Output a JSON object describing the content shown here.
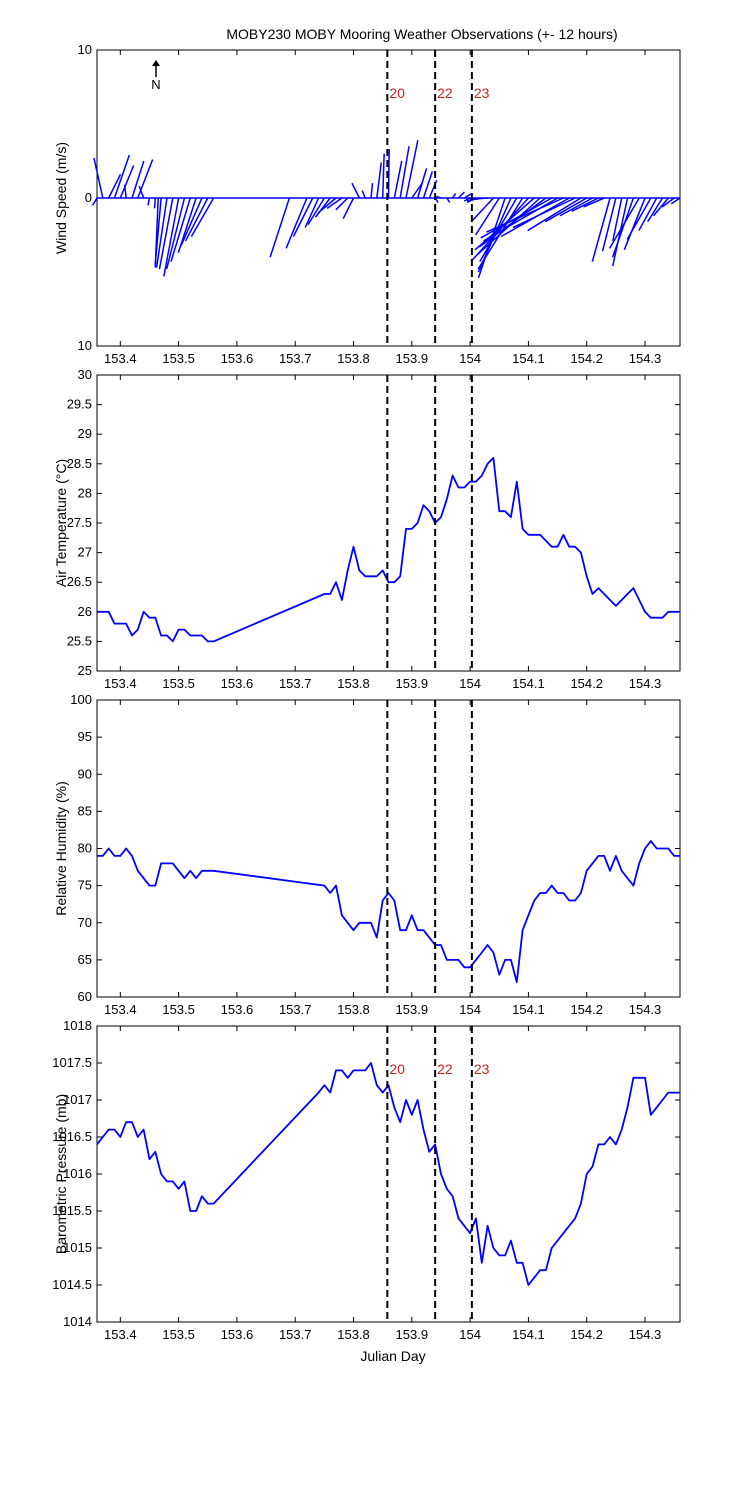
{
  "title": "MOBY230 MOBY Mooring Weather Observations (+- 12 hours)",
  "north_label": "N",
  "x_axis": {
    "label": "Julian Day",
    "range": [
      153.36,
      154.36
    ],
    "ticks": [
      153.4,
      153.5,
      153.6,
      153.7,
      153.8,
      153.9,
      154.0,
      154.1,
      154.2,
      154.3
    ],
    "tick_labels": [
      "153.4",
      "153.5",
      "153.6",
      "153.7",
      "153.8",
      "153.9",
      "154",
      "154.1",
      "154.2",
      "154.3"
    ]
  },
  "event_markers": [
    {
      "label": "20",
      "x": 153.858
    },
    {
      "label": "22",
      "x": 153.94
    },
    {
      "label": "23",
      "x": 154.003
    }
  ],
  "colors": {
    "series": "#0000ff",
    "marker_label": "#cc2222",
    "axis": "#000000",
    "marker_line": "#000000"
  },
  "chart_data": [
    {
      "type": "line",
      "subtype": "wind-stick",
      "ylabel": "Wind Speed (m/s)",
      "ylim": [
        -10,
        10
      ],
      "ytick_labels": [
        "10",
        "0",
        "10"
      ],
      "series": [
        {
          "x": [
            153.36,
            153.37,
            153.38,
            153.39,
            153.4,
            153.41,
            153.42,
            153.43,
            153.44,
            153.45,
            153.46,
            153.465,
            153.47,
            153.48,
            153.49,
            153.5,
            153.51,
            153.52,
            153.53,
            153.54,
            153.55,
            153.56,
            153.69,
            153.72,
            153.73,
            153.74,
            153.75,
            153.76,
            153.77,
            153.78,
            153.79,
            153.8,
            153.81,
            153.82,
            153.83,
            153.84,
            153.85,
            153.86,
            153.87,
            153.88,
            153.89,
            153.9,
            153.91,
            153.92,
            153.93,
            153.94,
            153.95,
            153.96,
            153.97,
            153.98,
            153.99,
            154.0,
            154.01,
            154.02,
            154.03,
            154.04,
            154.05,
            154.06,
            154.07,
            154.08,
            154.09,
            154.1,
            154.11,
            154.12,
            154.13,
            154.14,
            154.15,
            154.16,
            154.17,
            154.18,
            154.19,
            154.2,
            154.21,
            154.22,
            154.23,
            154.24,
            154.25,
            154.26,
            154.27,
            154.28,
            154.29,
            154.3,
            154.31,
            154.32,
            154.33,
            154.34,
            154.35,
            154.36
          ],
          "u": [
            -0.3,
            -0.6,
            0.8,
            1.0,
            0.9,
            -0.1,
            0.8,
            1.0,
            -0.3,
            -0.1,
            -0.05,
            -0.2,
            -0.4,
            -0.7,
            -0.9,
            -1.0,
            -1.2,
            -1.3,
            -1.2,
            -1.4,
            -1.5,
            -1.5,
            -1.3,
            -1.4,
            -1.3,
            -0.9,
            -1.1,
            -1.0,
            -1.2,
            -1.0,
            -0.8,
            -0.7,
            -0.5,
            -0.2,
            0.1,
            0.3,
            0.1,
            0.05,
            0.5,
            0.6,
            0.8,
            0.7,
            0.6,
            0.6,
            0.5,
            0.2,
            -0.3,
            0.2,
            0.2,
            0.4,
            0.5,
            -0.4,
            -0.6,
            -1.0,
            -1.2,
            -1.4,
            -1.6,
            -1.8,
            -2.2,
            -2.5,
            -3.0,
            -3.8,
            -4.0,
            -4.2,
            -4.5,
            -4.8,
            -5.0,
            -5.2,
            -4.6,
            -4.2,
            -3.6,
            -2.8,
            -2.2,
            -1.8,
            -1.4,
            -1.2,
            -0.9,
            -0.6,
            -1.0,
            -1.4,
            -2.0,
            -1.4,
            -1.6,
            -1.2,
            -1.0,
            -1.0,
            -0.8,
            -0.6
          ],
          "v": [
            -0.5,
            2.7,
            1.6,
            2.9,
            2.2,
            0.9,
            2.5,
            2.6,
            0.8,
            -0.5,
            -0.7,
            -4.7,
            -4.5,
            -4.7,
            -4.8,
            -5.3,
            -4.8,
            -4.3,
            -3.7,
            -3.2,
            -2.9,
            -2.6,
            -4.0,
            -3.4,
            -2.6,
            -2.0,
            -1.8,
            -1.3,
            -1.0,
            -0.7,
            -0.8,
            -1.4,
            1.0,
            0.5,
            1.0,
            2.4,
            3.0,
            3.3,
            2.5,
            3.5,
            3.9,
            1.0,
            2.0,
            1.8,
            1.2,
            -0.3,
            0.1,
            -0.3,
            0.3,
            0.4,
            0.3,
            -0.2,
            -0.3,
            -0.2,
            -0.1,
            -1.5,
            -2.5,
            -5.4,
            -5.0,
            -4.3,
            -4.8,
            -4.2,
            -3.5,
            -3.8,
            -3.3,
            -2.7,
            -2.9,
            -2.3,
            -2.6,
            -2.0,
            -2.2,
            -1.6,
            -1.2,
            -0.9,
            -0.6,
            -4.3,
            -3.6,
            -2.9,
            -4.6,
            -4.0,
            -3.4,
            -3.5,
            -2.8,
            -2.2,
            -1.6,
            -1.2,
            -0.6,
            -0.4
          ]
        }
      ]
    },
    {
      "type": "line",
      "ylabel": "Air Temperature (°C)",
      "ylim": [
        25,
        30
      ],
      "yticks": [
        25,
        25.5,
        26,
        26.5,
        27,
        27.5,
        28,
        28.5,
        29,
        29.5,
        30
      ],
      "ytick_labels": [
        "25",
        "25.5",
        "26",
        "26.5",
        "27",
        "27.5",
        "28",
        "28.5",
        "29",
        "29.5",
        "30"
      ],
      "series": [
        {
          "x": [
            153.36,
            153.37,
            153.38,
            153.39,
            153.4,
            153.41,
            153.42,
            153.43,
            153.44,
            153.45,
            153.46,
            153.47,
            153.48,
            153.49,
            153.5,
            153.51,
            153.52,
            153.53,
            153.54,
            153.55,
            153.56,
            153.75,
            153.76,
            153.77,
            153.78,
            153.79,
            153.8,
            153.81,
            153.82,
            153.83,
            153.84,
            153.85,
            153.86,
            153.87,
            153.88,
            153.89,
            153.9,
            153.91,
            153.92,
            153.93,
            153.94,
            153.95,
            153.96,
            153.97,
            153.98,
            153.99,
            154.0,
            154.01,
            154.02,
            154.03,
            154.04,
            154.05,
            154.06,
            154.07,
            154.08,
            154.09,
            154.1,
            154.11,
            154.12,
            154.13,
            154.14,
            154.15,
            154.16,
            154.17,
            154.18,
            154.19,
            154.2,
            154.21,
            154.22,
            154.23,
            154.24,
            154.25,
            154.26,
            154.27,
            154.28,
            154.29,
            154.3,
            154.31,
            154.32,
            154.33,
            154.34,
            154.35,
            154.36
          ],
          "y": [
            26.0,
            26.0,
            26.0,
            25.8,
            25.8,
            25.8,
            25.6,
            25.7,
            26.0,
            25.9,
            25.9,
            25.6,
            25.6,
            25.5,
            25.7,
            25.7,
            25.6,
            25.6,
            25.6,
            25.5,
            25.5,
            26.3,
            26.3,
            26.5,
            26.2,
            26.7,
            27.1,
            26.7,
            26.6,
            26.6,
            26.6,
            26.7,
            26.5,
            26.5,
            26.6,
            27.4,
            27.4,
            27.5,
            27.8,
            27.7,
            27.5,
            27.6,
            27.9,
            28.3,
            28.1,
            28.1,
            28.2,
            28.2,
            28.3,
            28.5,
            28.6,
            27.7,
            27.7,
            27.6,
            28.2,
            27.4,
            27.3,
            27.3,
            27.3,
            27.2,
            27.1,
            27.1,
            27.3,
            27.1,
            27.1,
            27.0,
            26.6,
            26.3,
            26.4,
            26.3,
            26.2,
            26.1,
            26.2,
            26.3,
            26.4,
            26.2,
            26.0,
            25.9,
            25.9,
            25.9,
            26.0,
            26.0,
            26.0
          ]
        }
      ]
    },
    {
      "type": "line",
      "ylabel": "Relative Humidity (%)",
      "ylim": [
        60,
        100
      ],
      "yticks": [
        60,
        65,
        70,
        75,
        80,
        85,
        90,
        95,
        100
      ],
      "ytick_labels": [
        "60",
        "65",
        "70",
        "75",
        "80",
        "85",
        "90",
        "95",
        "100"
      ],
      "series": [
        {
          "x": [
            153.36,
            153.37,
            153.38,
            153.39,
            153.4,
            153.41,
            153.42,
            153.43,
            153.44,
            153.45,
            153.46,
            153.47,
            153.48,
            153.49,
            153.5,
            153.51,
            153.52,
            153.53,
            153.54,
            153.55,
            153.56,
            153.75,
            153.76,
            153.77,
            153.78,
            153.79,
            153.8,
            153.81,
            153.82,
            153.83,
            153.84,
            153.85,
            153.86,
            153.87,
            153.88,
            153.89,
            153.9,
            153.91,
            153.92,
            153.93,
            153.94,
            153.95,
            153.96,
            153.97,
            153.98,
            153.99,
            154.0,
            154.01,
            154.02,
            154.03,
            154.04,
            154.05,
            154.06,
            154.07,
            154.08,
            154.09,
            154.1,
            154.11,
            154.12,
            154.13,
            154.14,
            154.15,
            154.16,
            154.17,
            154.18,
            154.19,
            154.2,
            154.21,
            154.22,
            154.23,
            154.24,
            154.25,
            154.26,
            154.27,
            154.28,
            154.29,
            154.3,
            154.31,
            154.32,
            154.33,
            154.34,
            154.35,
            154.36
          ],
          "y": [
            79,
            79,
            80,
            79,
            79,
            80,
            79,
            77,
            76,
            75,
            75,
            78,
            78,
            78,
            77,
            76,
            77,
            76,
            77,
            77,
            77,
            75,
            74,
            75,
            71,
            70,
            69,
            70,
            70,
            70,
            68,
            73,
            74,
            73,
            69,
            69,
            71,
            69,
            69,
            68,
            67,
            67,
            65,
            65,
            65,
            64,
            64,
            65,
            66,
            67,
            66,
            63,
            65,
            65,
            62,
            69,
            71,
            73,
            74,
            74,
            75,
            74,
            74,
            73,
            73,
            74,
            77,
            78,
            79,
            79,
            77,
            79,
            77,
            76,
            75,
            78,
            80,
            81,
            80,
            80,
            80,
            79,
            79
          ]
        }
      ]
    },
    {
      "type": "line",
      "xlabel": "Julian Day",
      "ylabel": "Barometric Pressure (mb)",
      "ylim": [
        1014,
        1018
      ],
      "yticks": [
        1014,
        1014.5,
        1015,
        1015.5,
        1016,
        1016.5,
        1017,
        1017.5,
        1018
      ],
      "ytick_labels": [
        "1014",
        "1014.5",
        "1015",
        "1015.5",
        "1016",
        "1016.5",
        "1017",
        "1017.5",
        "1018"
      ],
      "series": [
        {
          "x": [
            153.36,
            153.37,
            153.38,
            153.39,
            153.4,
            153.41,
            153.42,
            153.43,
            153.44,
            153.45,
            153.46,
            153.47,
            153.48,
            153.49,
            153.5,
            153.51,
            153.52,
            153.53,
            153.54,
            153.55,
            153.56,
            153.74,
            153.75,
            153.76,
            153.77,
            153.78,
            153.79,
            153.8,
            153.81,
            153.82,
            153.83,
            153.84,
            153.85,
            153.86,
            153.87,
            153.88,
            153.89,
            153.9,
            153.91,
            153.92,
            153.93,
            153.94,
            153.95,
            153.96,
            153.97,
            153.98,
            153.99,
            154.0,
            154.01,
            154.02,
            154.03,
            154.04,
            154.05,
            154.06,
            154.07,
            154.08,
            154.09,
            154.1,
            154.11,
            154.12,
            154.13,
            154.14,
            154.15,
            154.16,
            154.17,
            154.18,
            154.19,
            154.2,
            154.21,
            154.22,
            154.23,
            154.24,
            154.25,
            154.26,
            154.27,
            154.28,
            154.29,
            154.3,
            154.31,
            154.32,
            154.33,
            154.34,
            154.35,
            154.36
          ],
          "y": [
            1016.4,
            1016.5,
            1016.6,
            1016.6,
            1016.5,
            1016.7,
            1016.7,
            1016.5,
            1016.6,
            1016.2,
            1016.3,
            1016.0,
            1015.9,
            1015.9,
            1015.8,
            1015.9,
            1015.5,
            1015.5,
            1015.7,
            1015.6,
            1015.6,
            1017.1,
            1017.2,
            1017.1,
            1017.4,
            1017.4,
            1017.3,
            1017.4,
            1017.4,
            1017.4,
            1017.5,
            1017.2,
            1017.1,
            1017.2,
            1016.9,
            1016.7,
            1017.0,
            1016.8,
            1017.0,
            1016.6,
            1016.3,
            1016.4,
            1016.0,
            1015.8,
            1015.7,
            1015.4,
            1015.3,
            1015.2,
            1015.4,
            1014.8,
            1015.3,
            1015.0,
            1014.9,
            1014.9,
            1015.1,
            1014.8,
            1014.8,
            1014.5,
            1014.6,
            1014.7,
            1014.7,
            1015.0,
            1015.1,
            1015.2,
            1015.3,
            1015.4,
            1015.6,
            1016.0,
            1016.1,
            1016.4,
            1016.4,
            1016.5,
            1016.4,
            1016.6,
            1016.9,
            1017.3,
            1017.3,
            1017.3,
            1016.8,
            1016.9,
            1017.0,
            1017.1,
            1017.1,
            1017.1
          ]
        }
      ]
    }
  ]
}
